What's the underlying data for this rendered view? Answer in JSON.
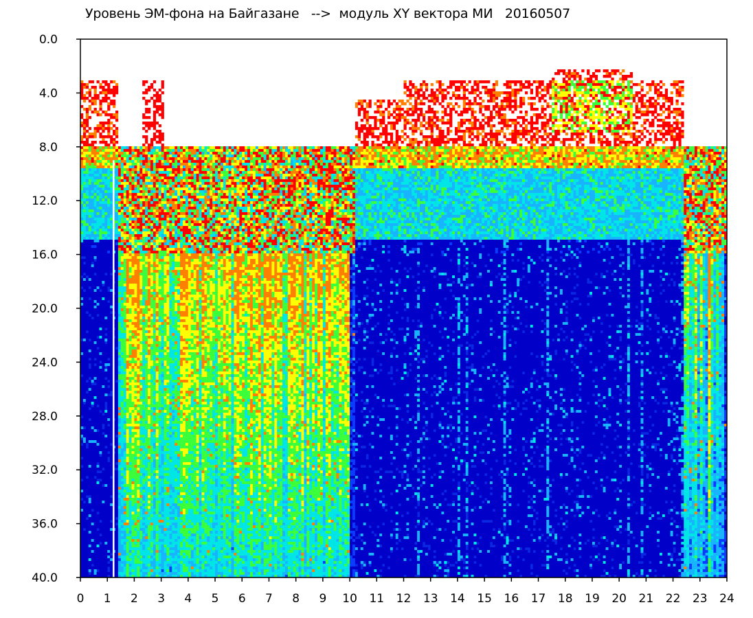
{
  "chart_data": {
    "type": "heatmap",
    "title": "Уровень ЭМ-фона на Байгазане   -->  модуль XY вектора МИ   20160507",
    "xlabel": "",
    "ylabel": "",
    "xlim": [
      0,
      24
    ],
    "ylim": [
      0,
      40
    ],
    "y_inverted": true,
    "grid": false,
    "x_tick_labels": [
      "0",
      "1",
      "2",
      "3",
      "4",
      "5",
      "6",
      "7",
      "8",
      "9",
      "10",
      "11",
      "12",
      "13",
      "14",
      "15",
      "16",
      "17",
      "18",
      "19",
      "20",
      "21",
      "22",
      "23",
      "24"
    ],
    "y_tick_labels": [
      "0.0",
      "4.0",
      "8.0",
      "12.0",
      "16.0",
      "20.0",
      "24.0",
      "28.0",
      "32.0",
      "36.0",
      "40.0"
    ],
    "colorscale": [
      "#0000c8",
      "#0a3cff",
      "#19b4ff",
      "#00e6e6",
      "#3cff3c",
      "#ffff00",
      "#ff8000",
      "#ff0000",
      "#ffffff"
    ],
    "regions": [
      {
        "description_x": [
          0,
          1.5
        ],
        "pattern": "red speckle 3-7, green/cyan band 8-15, blue below"
      },
      {
        "description_x": [
          1.5,
          10
        ],
        "pattern": "vertical streaks of cyan/green/red reaching to 40"
      },
      {
        "description_x": [
          10,
          22.4
        ],
        "pattern": "red speckle 2-8, green/cyan band 8-15, deep blue below"
      },
      {
        "description_x": [
          22.4,
          24
        ],
        "pattern": "vertical streaks, blue background"
      }
    ]
  }
}
